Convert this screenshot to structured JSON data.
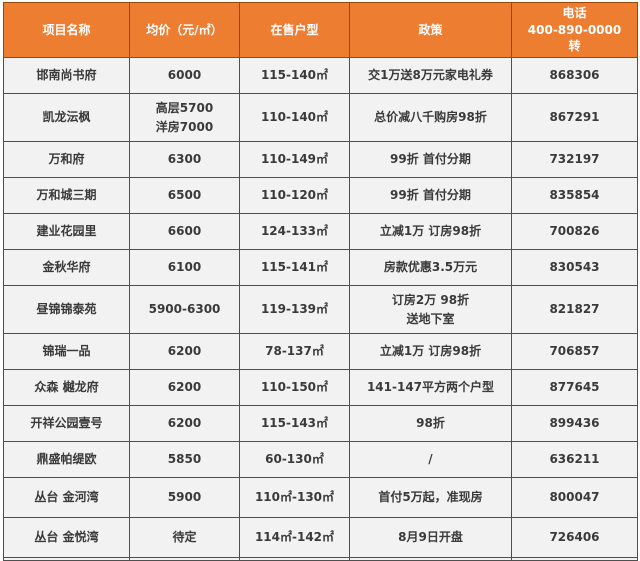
{
  "colors": {
    "header_bg": "#ED7D31",
    "header_border": "#9C4708",
    "header_text": "#FFFFFF",
    "cell_bg": "#F2F2F2",
    "cell_border": "#4F4F4F",
    "cell_text": "#3A3A3A"
  },
  "chart_data": {
    "type": "table",
    "columns": [
      "项目名称",
      "均价（元/㎡）",
      "在售户型",
      "政策",
      "电话\n400-890-0000\n转"
    ],
    "rows": [
      [
        "邯南尚书府",
        "6000",
        "115-140㎡",
        "交1万送8万元家电礼券",
        "868306"
      ],
      [
        "凯龙沄枫",
        "高层5700\n洋房7000",
        "110-140㎡",
        "总价减八千购房98折",
        "867291"
      ],
      [
        "万和府",
        "6300",
        "110-149㎡",
        "99折 首付分期",
        "732197"
      ],
      [
        "万和城三期",
        "6500",
        "110-120㎡",
        "99折 首付分期",
        "835854"
      ],
      [
        "建业花园里",
        "6600",
        "124-133㎡",
        "立减1万 订房98折",
        "700826"
      ],
      [
        "金秋华府",
        "6100",
        "115-141㎡",
        "房款优惠3.5万元",
        "830543"
      ],
      [
        "昼锦锦泰苑",
        "5900-6300",
        "119-139㎡",
        "订房2万 98折\n送地下室",
        "821827"
      ],
      [
        "锦瑞一品",
        "6200",
        "78-137㎡",
        "立减1万 订房98折",
        "706857"
      ],
      [
        "众森 樾龙府",
        "6200",
        "110-150㎡",
        "141-147平方两个户型",
        "877645"
      ],
      [
        "开祥公园壹号",
        "6200",
        "115-143㎡",
        "98折",
        "899436"
      ],
      [
        "鼎盛帕缇欧",
        "5850",
        "60-130㎡",
        "/",
        "636211"
      ],
      [
        "丛台 金河湾",
        "5900",
        "110㎡-130㎡",
        "首付5万起，准现房",
        "800047"
      ],
      [
        "丛台 金悦湾",
        "待定",
        "114㎡-142㎡",
        "8月9日开盘",
        "726406"
      ]
    ]
  }
}
